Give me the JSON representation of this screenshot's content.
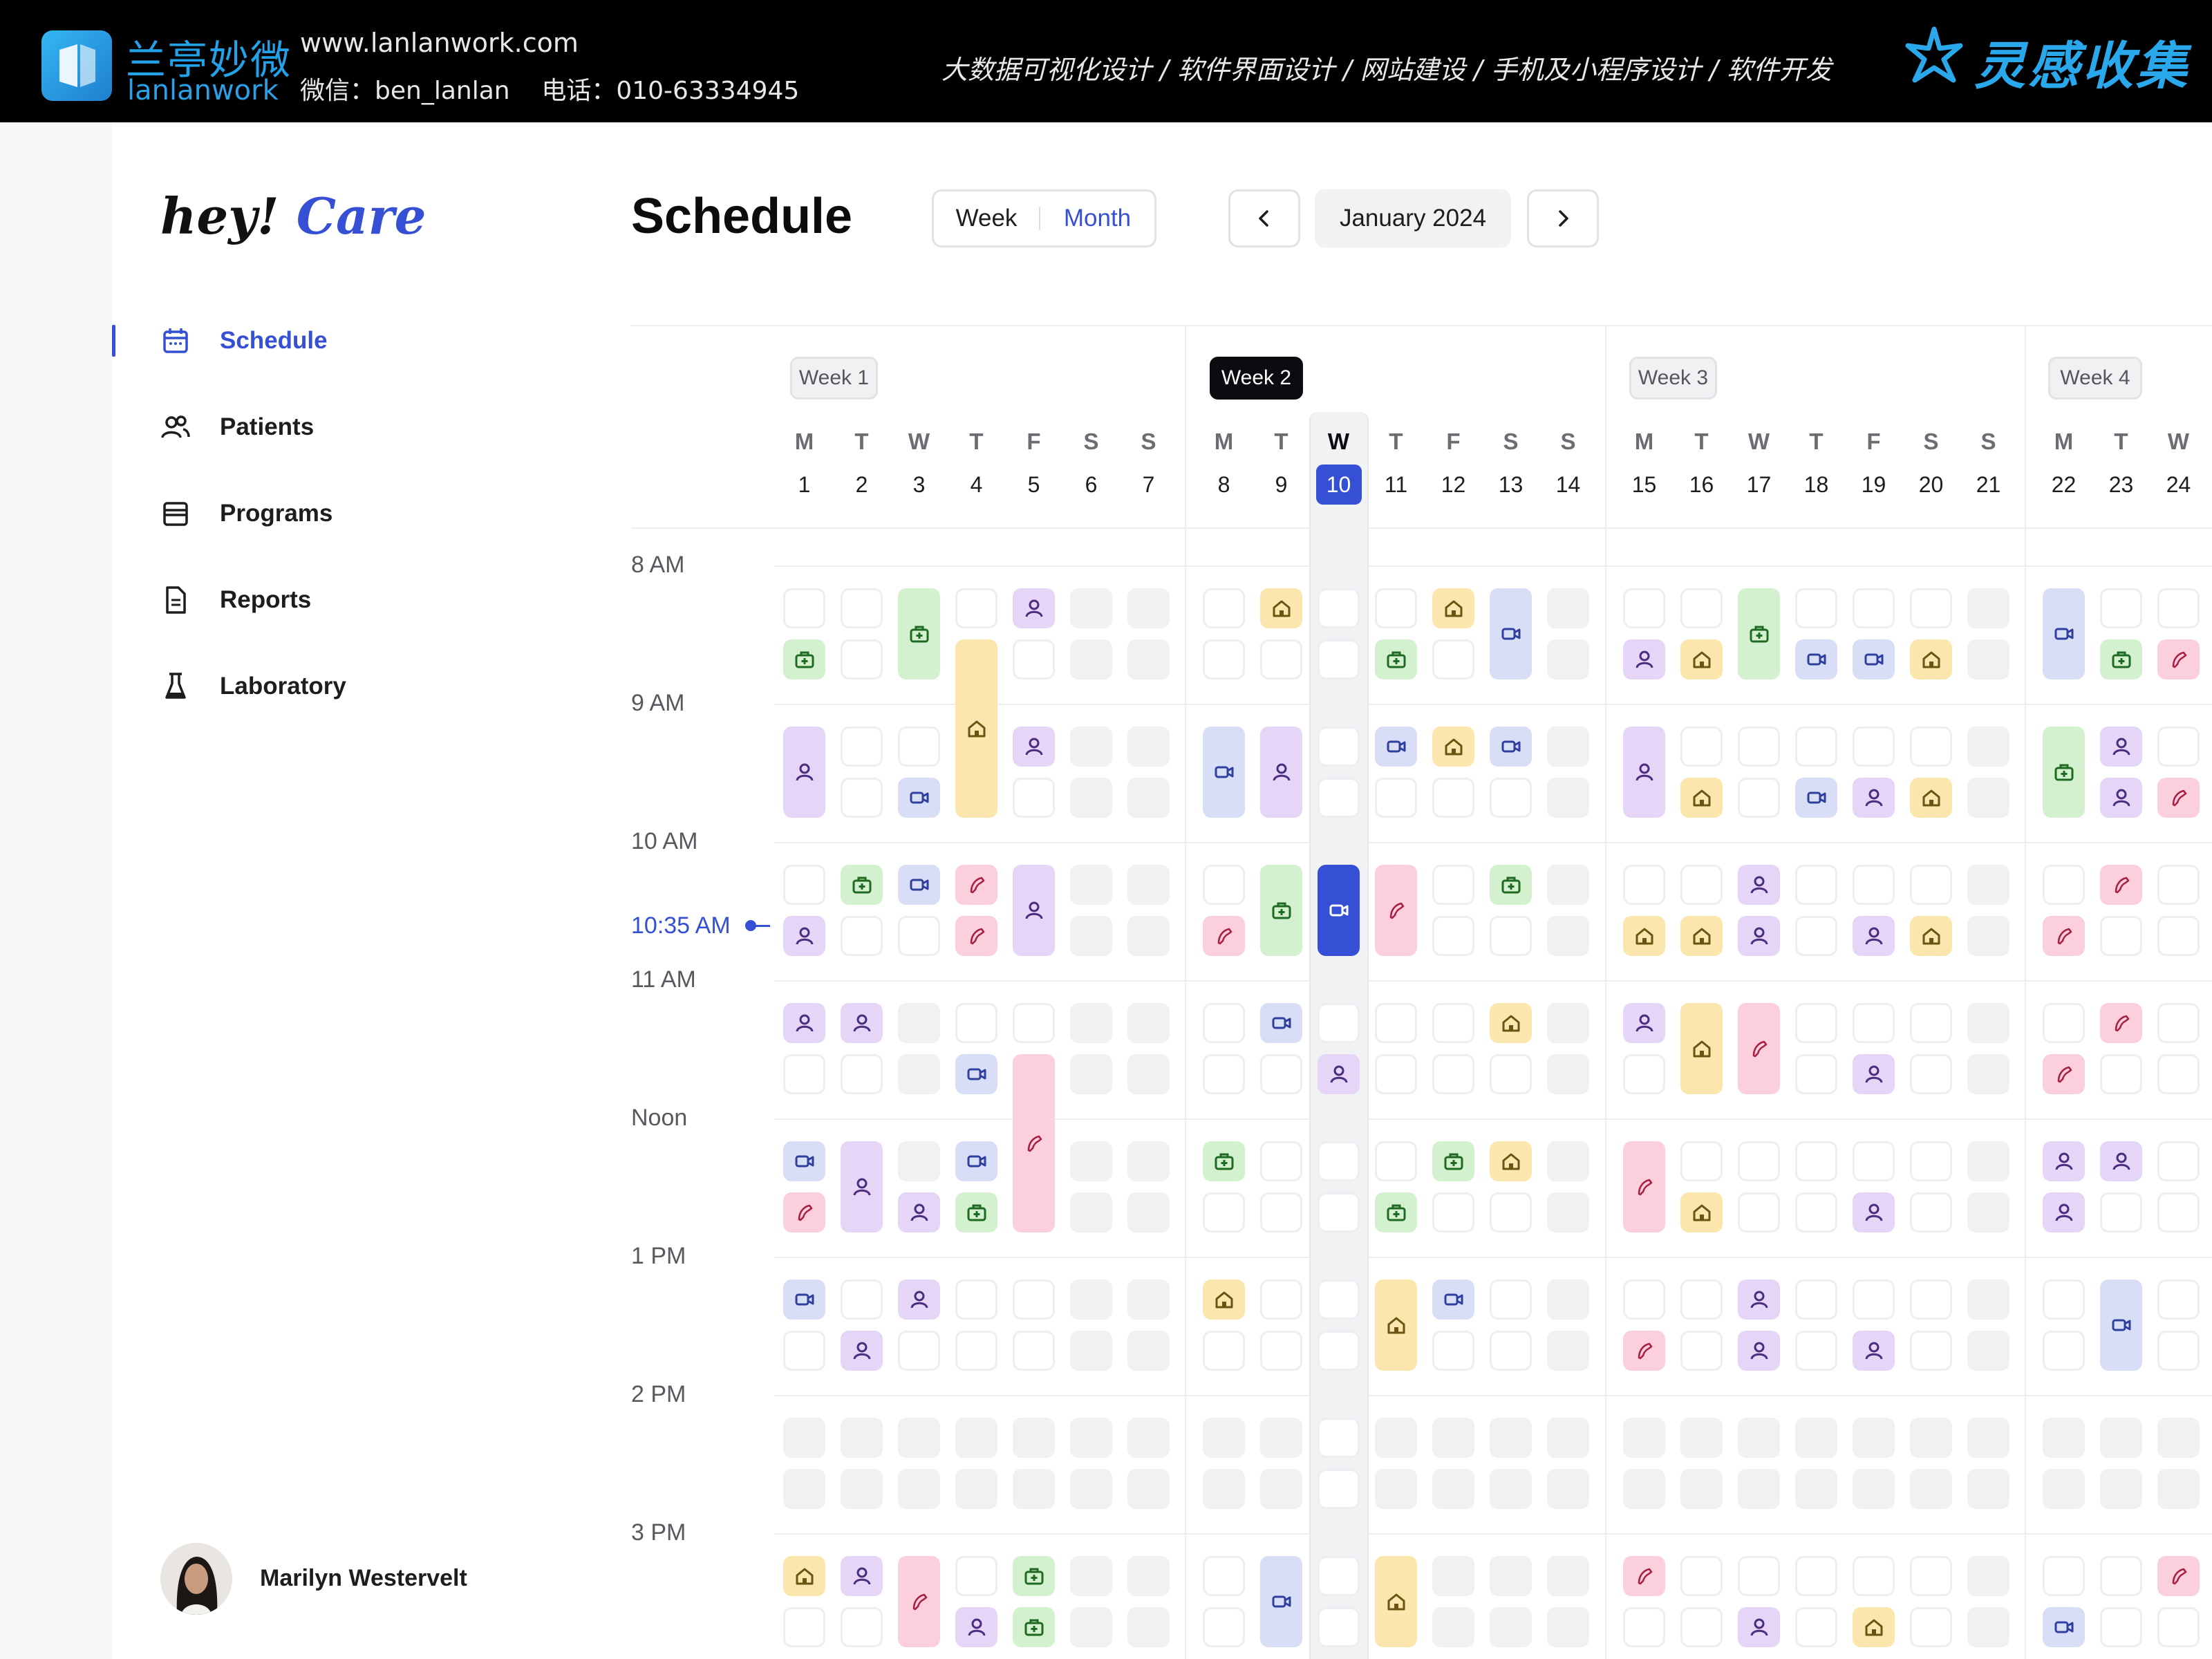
{
  "watermark": {
    "brand_cn": "兰亭妙微",
    "brand_en": "lanlanwork",
    "url": "www.lanlanwork.com",
    "contact": "微信：ben_lanlan    电话：010-63334945",
    "services": "大数据可视化设计 / 软件界面设计 / 网站建设 / 手机及小程序设计 / 软件开发",
    "collection": "灵感收集"
  },
  "app": {
    "logo_a": "hey!",
    "logo_b": "Care"
  },
  "nav": [
    {
      "label": "Schedule",
      "icon": "calendar-icon",
      "active": true
    },
    {
      "label": "Patients",
      "icon": "users-icon"
    },
    {
      "label": "Programs",
      "icon": "folder-icon"
    },
    {
      "label": "Reports",
      "icon": "document-icon"
    },
    {
      "label": "Laboratory",
      "icon": "flask-icon"
    }
  ],
  "user": {
    "name": "Marilyn Westervelt"
  },
  "header": {
    "title": "Schedule",
    "view_week": "Week",
    "view_month": "Month",
    "month_label": "January 2024"
  },
  "weeks": [
    {
      "label": "Week 1",
      "active": false
    },
    {
      "label": "Week 2",
      "active": true
    },
    {
      "label": "Week 3",
      "active": false
    },
    {
      "label": "Week 4",
      "active": false
    }
  ],
  "days": [
    {
      "l": "M",
      "n": "1"
    },
    {
      "l": "T",
      "n": "2"
    },
    {
      "l": "W",
      "n": "3"
    },
    {
      "l": "T",
      "n": "4"
    },
    {
      "l": "F",
      "n": "5"
    },
    {
      "l": "S",
      "n": "6"
    },
    {
      "l": "S",
      "n": "7"
    },
    {
      "l": "M",
      "n": "8"
    },
    {
      "l": "T",
      "n": "9"
    },
    {
      "l": "W",
      "n": "10",
      "today": true
    },
    {
      "l": "T",
      "n": "11"
    },
    {
      "l": "F",
      "n": "12"
    },
    {
      "l": "S",
      "n": "13"
    },
    {
      "l": "S",
      "n": "14"
    },
    {
      "l": "M",
      "n": "15"
    },
    {
      "l": "T",
      "n": "16"
    },
    {
      "l": "W",
      "n": "17"
    },
    {
      "l": "T",
      "n": "18"
    },
    {
      "l": "F",
      "n": "19"
    },
    {
      "l": "S",
      "n": "20"
    },
    {
      "l": "S",
      "n": "21"
    },
    {
      "l": "M",
      "n": "22"
    },
    {
      "l": "T",
      "n": "23"
    },
    {
      "l": "W",
      "n": "24"
    }
  ],
  "time_labels": [
    "8 AM",
    "9 AM",
    "10 AM",
    "11 AM",
    "Noon",
    "1 PM",
    "2 PM",
    "3 PM"
  ],
  "current_time": "10:35 AM",
  "colors": {
    "accent": "#3550d4",
    "home": "#fbe7ad",
    "video": "#d9def7",
    "person": "#e5d6f8",
    "clinic": "#d3f0cf",
    "phone": "#fccfdc"
  },
  "schedule": [
    "E E C E P O O|E H E E H V O|E E C E E E O|V E E",
    "C E C H E O O|E E E C E V O|P H C V V H O|V C P",
    "P E E H P O O|V P E V H V O|P E E E E E O|C P E",
    "P E V H E O O|V P E E E E O|P H E V P H O|C P P",
    "E C V P P O O|E C N P E C O|E E P E E E O|E P E",
    "P E E P P O O|P C N P E E O|H H P E P H O|P E E",
    "P P O E E O O|E V E E E H O|P H P E E E O|E P E",
    "E E O V P O O|E E P E E E O|E H P E P E O|P E E",
    "V P O V P O O|C E E E C H O|P E E E E E O|P P E",
    "P P P C P O O|E E E C E E O|P H E E P E O|P E E",
    "V E P E E O O|H E E H V E O|E E P E E E O|E V E",
    "E P E E E O O|E E E H E E O|P E P E P E O|E V E",
    "O O O O O O O|O O E O O O O|O O O O O O O|O O O",
    "O O O O O O O|O O E O O O O|O O O O O O O|O O O",
    "H P P E C O O|E V E H O O O|P E E E E E O|E E P",
    "E E P P C O O|E V E H O O O|E E P E E E O|V E E"
  ],
  "schedule_types": [
    "E E C E P O O|E H E E H V O|E E C E E E O|V E E",
    "C E C H E O O|E E E C E V O|P H C V V H O|V C F",
    "P E E H P O O|V P E V H V O|P E E E E E O|C P E",
    "P E V H E O O|V P E E E E O|P H E V P H O|C P F",
    "E C V F P O O|E C N F E C O|E E P E E E O|E F E",
    "P E E F P O O|F C N F E E O|H H P E P H O|F E E",
    "P P O E E O O|E V E E E H O|P H F E E E O|E F E",
    "E E O V F O O|E E P E E E O|E H F E P E O|F E E",
    "V P O V F O O|C E E E C H O|F E E E E E O|P P E",
    "F P P C F O O|E E E C E E O|F H E E P E O|P E E",
    "V E P E E O O|H E E H V E O|E E P E E E O|E V E",
    "E P E E E O O|E E E H E E O|F E P E P E O|E V E",
    "O O O O O O O|O O E O O O O|O O O O O O O|O O O",
    "O O O O O O O|O O E O O O O|O O O O O O O|O O O",
    "H P F E C O O|E V E H O O O|F E E E E E O|E E F",
    "E E F P C O O|E V E H O O O|E E P E H E O|V E E"
  ]
}
